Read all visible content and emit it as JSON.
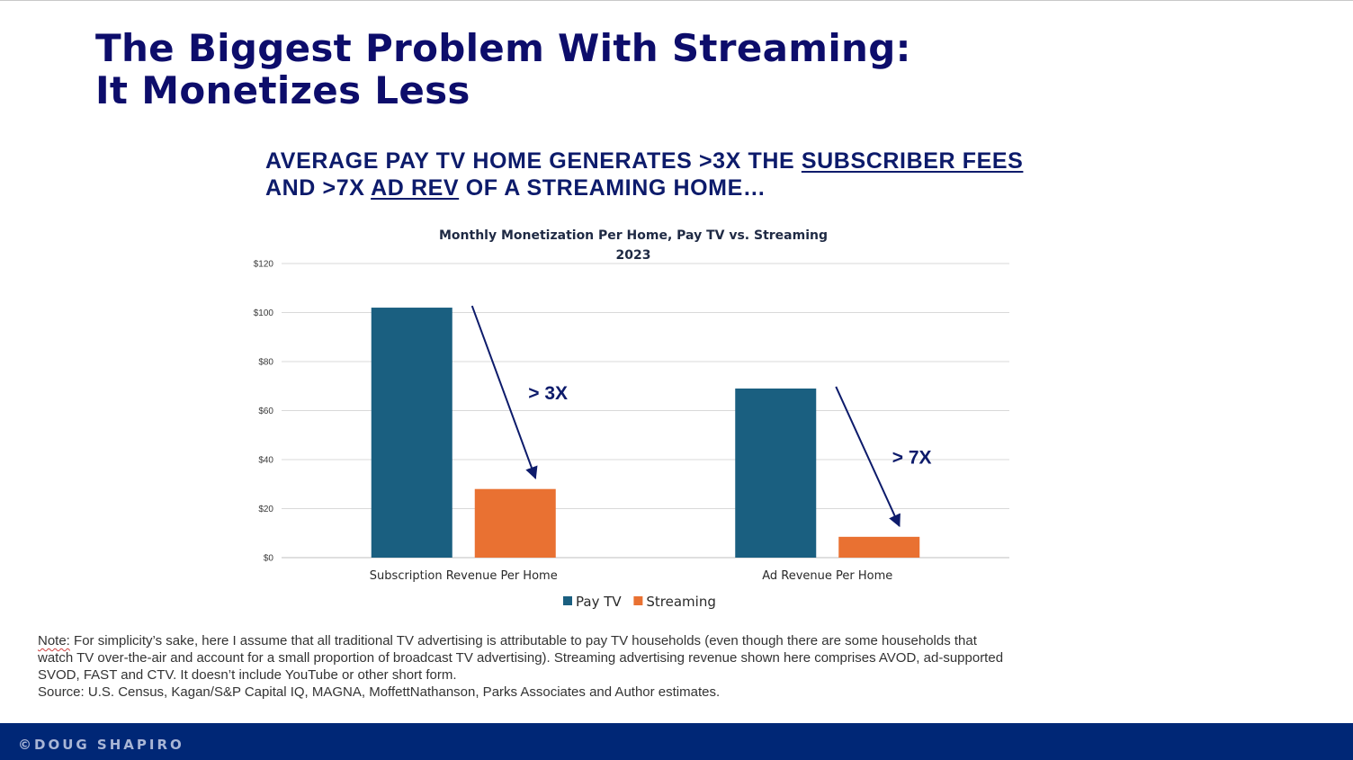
{
  "slide": {
    "title_line1": "The Biggest Problem With Streaming:",
    "title_line2": "It Monetizes Less",
    "subtitle": {
      "part1": "AVERAGE PAY TV HOME GENERATES >3X THE ",
      "u1": "SUBSCRIBER FEES",
      "part2": " AND >7X ",
      "u2": "AD REV",
      "part3": " OF A STREAMING HOME…"
    },
    "note": {
      "label": "Note:",
      "text": " For simplicity’s sake, here I assume that all traditional TV advertising is attributable to pay TV households (even though there are some households that watch TV over-the-air and account for a small proportion of broadcast TV advertising). Streaming advertising revenue shown here comprises AVOD, ad-supported SVOD, FAST and CTV. It doesn’t include YouTube or other short form.",
      "source": "Source: U.S. Census, Kagan/S&P Capital IQ, MAGNA, MoffettNathanson, Parks Associates and Author estimates."
    },
    "footer": "©DOUG SHAPIRO"
  },
  "chart_data": {
    "type": "bar",
    "title": "Monthly Monetization Per Home, Pay TV vs. Streaming",
    "subtitle": "2023",
    "categories": [
      "Subscription Revenue Per Home",
      "Ad Revenue Per Home"
    ],
    "series": [
      {
        "name": "Pay TV",
        "values": [
          102,
          69
        ],
        "color": "#1a5f80"
      },
      {
        "name": "Streaming",
        "values": [
          28,
          8.5
        ],
        "color": "#e97132"
      }
    ],
    "ylim": [
      0,
      120
    ],
    "yticks": [
      0,
      20,
      40,
      60,
      80,
      100,
      120
    ],
    "ytick_labels": [
      "$0",
      "$20",
      "$40",
      "$60",
      "$80",
      "$100",
      "$120"
    ],
    "xlabel": "",
    "ylabel": "",
    "grid": true,
    "legend": "bottom",
    "annotations": [
      {
        "text": "> 3X",
        "category": 0
      },
      {
        "text": "> 7X",
        "category": 1
      }
    ],
    "arrow_color": "#0d1b6b"
  }
}
